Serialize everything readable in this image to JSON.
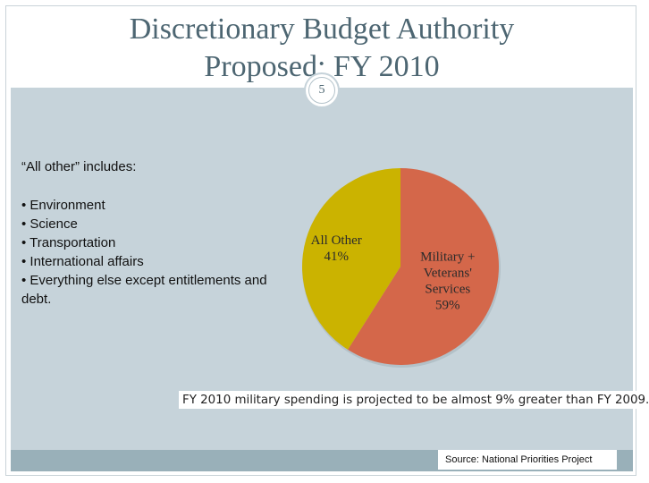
{
  "slide": {
    "title_line1": "Discretionary Budget Authority",
    "title_line2": "Proposed: FY 2010",
    "page_number": "5"
  },
  "note": {
    "heading": "“All other” includes:",
    "items": [
      "• Environment",
      "• Science",
      "• Transportation",
      "• International affairs",
      "• Everything else except entitlements and debt."
    ]
  },
  "chart_data": {
    "type": "pie",
    "slices": [
      {
        "label_lines": [
          "Military +",
          "Veterans'",
          "Services"
        ],
        "value_label": "59%",
        "value": 59,
        "color": "#d4674a"
      },
      {
        "label_lines": [
          "All Other"
        ],
        "value_label": "41%",
        "value": 41,
        "color": "#cbb300"
      }
    ],
    "caption": "FY 2010 military spending is projected to be almost 9% greater than FY 2009."
  },
  "footer": {
    "source": "Source: National Priorities Project"
  },
  "colors": {
    "title": "#4d6672",
    "panel": "#c6d3da",
    "footer_band": "#99b0b9"
  }
}
